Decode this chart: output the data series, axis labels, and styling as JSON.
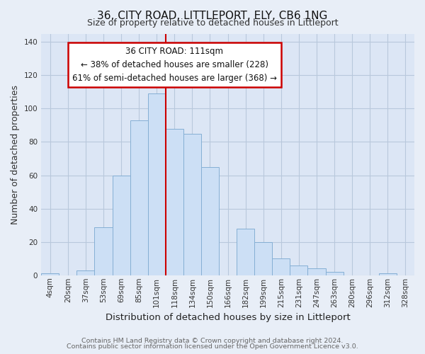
{
  "title": "36, CITY ROAD, LITTLEPORT, ELY, CB6 1NG",
  "subtitle": "Size of property relative to detached houses in Littleport",
  "xlabel": "Distribution of detached houses by size in Littleport",
  "ylabel": "Number of detached properties",
  "bar_labels": [
    "4sqm",
    "20sqm",
    "37sqm",
    "53sqm",
    "69sqm",
    "85sqm",
    "101sqm",
    "118sqm",
    "134sqm",
    "150sqm",
    "166sqm",
    "182sqm",
    "199sqm",
    "215sqm",
    "231sqm",
    "247sqm",
    "263sqm",
    "280sqm",
    "296sqm",
    "312sqm",
    "328sqm"
  ],
  "bar_heights": [
    1,
    0,
    3,
    29,
    60,
    93,
    109,
    88,
    85,
    65,
    0,
    28,
    20,
    10,
    6,
    4,
    2,
    0,
    0,
    1,
    0
  ],
  "bar_color": "#ccdff5",
  "bar_edge_color": "#85afd4",
  "annotation_title": "36 CITY ROAD: 111sqm",
  "annotation_line1": "← 38% of detached houses are smaller (228)",
  "annotation_line2": "61% of semi-detached houses are larger (368) →",
  "annotation_box_facecolor": "#ffffff",
  "annotation_box_edgecolor": "#cc0000",
  "vline_color": "#cc0000",
  "vline_x_index": 6,
  "ylim": [
    0,
    145
  ],
  "yticks": [
    0,
    20,
    40,
    60,
    80,
    100,
    120,
    140
  ],
  "footer_line1": "Contains HM Land Registry data © Crown copyright and database right 2024.",
  "footer_line2": "Contains public sector information licensed under the Open Government Licence v3.0.",
  "background_color": "#e8eef7",
  "plot_bg_color": "#dce6f5",
  "grid_color": "#b8c8dc",
  "title_fontsize": 11,
  "subtitle_fontsize": 9,
  "ylabel_fontsize": 9,
  "xlabel_fontsize": 9.5,
  "tick_fontsize": 7.5,
  "footer_fontsize": 6.8,
  "ann_fontsize": 8.5
}
